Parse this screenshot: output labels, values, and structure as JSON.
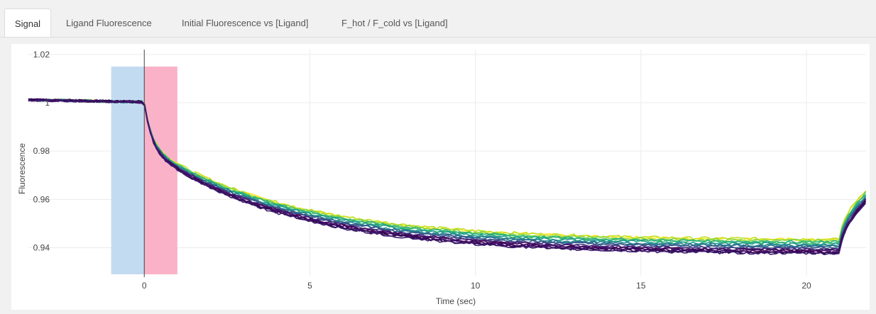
{
  "tabs": [
    {
      "label": "Signal",
      "active": true
    },
    {
      "label": "Ligand Fluorescence",
      "active": false
    },
    {
      "label": "Initial Fluorescence vs [Ligand]",
      "active": false
    },
    {
      "label": "F_hot / F_cold vs [Ligand]",
      "active": false
    }
  ],
  "chart_data": {
    "type": "line",
    "xlabel": "Time (sec)",
    "ylabel": "Fluorescence",
    "xlim": [
      -3.5,
      21.8
    ],
    "ylim": [
      0.929,
      1.022
    ],
    "xticks": [
      0,
      5,
      10,
      15,
      20
    ],
    "xtick_labels": [
      "0",
      "5",
      "10",
      "15",
      "20"
    ],
    "yticks": [
      0.94,
      0.96,
      0.98,
      1.0,
      1.02
    ],
    "ytick_labels": [
      "0.94",
      "0.96",
      "0.98",
      "1",
      "1.02"
    ],
    "grid": true,
    "regions": [
      {
        "x": [
          -1,
          0
        ],
        "y": [
          0.929,
          1.015
        ],
        "color": "#c3dbf1"
      },
      {
        "x": [
          0,
          1
        ],
        "y": [
          0.929,
          1.015
        ],
        "color": "#f9b2c8"
      }
    ],
    "vline_x": 0,
    "curve_model": {
      "baseline": 1.0,
      "step_time": 0,
      "recover_time": 21.0,
      "final_values": [
        0.943,
        0.9432,
        0.9425,
        0.9418,
        0.942,
        0.9412,
        0.9405,
        0.9402,
        0.9398,
        0.9392,
        0.9388,
        0.9385,
        0.938,
        0.9378,
        0.9375,
        0.9372
      ],
      "end_values": [
        0.9635,
        0.964,
        0.9625,
        0.963,
        0.962,
        0.9615,
        0.9612,
        0.9608,
        0.9605,
        0.9602,
        0.96,
        0.9598,
        0.9595,
        0.9592,
        0.959,
        0.9588
      ]
    },
    "series_colors": [
      "#fde725",
      "#c2df23",
      "#86d549",
      "#52c569",
      "#2ab07f",
      "#1e9b8a",
      "#25858e",
      "#2d708e",
      "#38588c",
      "#433e85",
      "#482173",
      "#46085c",
      "#440154",
      "#3b0f70",
      "#2c0a4b",
      "#3e1a6e"
    ]
  }
}
